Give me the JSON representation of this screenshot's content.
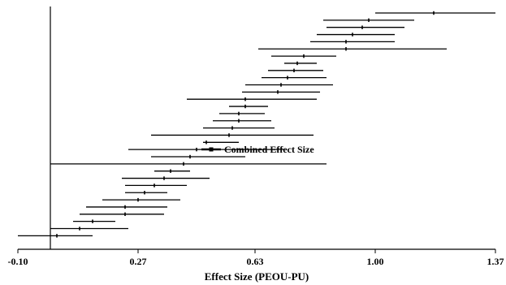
{
  "chart_data": {
    "type": "forest",
    "title": "",
    "xlabel": "Effect Size (PEOU-PU)",
    "ylabel": "",
    "xlim": [
      -0.1,
      1.37
    ],
    "xticks": [
      -0.1,
      0.27,
      0.63,
      1.0,
      1.37
    ],
    "xtick_labels": [
      "-0.10",
      "0.27",
      "0.63",
      "1.00",
      "1.37"
    ],
    "reference_line_x": 0.0,
    "line_color": "#000000",
    "annotation": "Combined Effect Size",
    "combined": {
      "estimate": 0.495,
      "ci_low": 0.475,
      "ci_high": 0.515
    },
    "studies": [
      {
        "estimate": 1.18,
        "ci_low": 1.0,
        "ci_high": 1.37
      },
      {
        "estimate": 0.98,
        "ci_low": 0.84,
        "ci_high": 1.12
      },
      {
        "estimate": 0.96,
        "ci_low": 0.85,
        "ci_high": 1.09
      },
      {
        "estimate": 0.93,
        "ci_low": 0.82,
        "ci_high": 1.06
      },
      {
        "estimate": 0.91,
        "ci_low": 0.8,
        "ci_high": 1.06
      },
      {
        "estimate": 0.91,
        "ci_low": 0.64,
        "ci_high": 1.22
      },
      {
        "estimate": 0.78,
        "ci_low": 0.68,
        "ci_high": 0.88
      },
      {
        "estimate": 0.76,
        "ci_low": 0.72,
        "ci_high": 0.82
      },
      {
        "estimate": 0.75,
        "ci_low": 0.67,
        "ci_high": 0.84
      },
      {
        "estimate": 0.73,
        "ci_low": 0.65,
        "ci_high": 0.85
      },
      {
        "estimate": 0.71,
        "ci_low": 0.6,
        "ci_high": 0.87
      },
      {
        "estimate": 0.7,
        "ci_low": 0.59,
        "ci_high": 0.83
      },
      {
        "estimate": 0.6,
        "ci_low": 0.42,
        "ci_high": 0.82
      },
      {
        "estimate": 0.6,
        "ci_low": 0.55,
        "ci_high": 0.67
      },
      {
        "estimate": 0.58,
        "ci_low": 0.52,
        "ci_high": 0.66
      },
      {
        "estimate": 0.58,
        "ci_low": 0.5,
        "ci_high": 0.68
      },
      {
        "estimate": 0.56,
        "ci_low": 0.47,
        "ci_high": 0.69
      },
      {
        "estimate": 0.55,
        "ci_low": 0.31,
        "ci_high": 0.81
      },
      {
        "estimate": 0.48,
        "ci_low": 0.47,
        "ci_high": 0.58
      },
      {
        "estimate": 0.45,
        "ci_low": 0.24,
        "ci_high": 0.72
      },
      {
        "estimate": 0.43,
        "ci_low": 0.31,
        "ci_high": 0.6
      },
      {
        "estimate": 0.41,
        "ci_low": 0.0,
        "ci_high": 0.85
      },
      {
        "estimate": 0.37,
        "ci_low": 0.32,
        "ci_high": 0.43
      },
      {
        "estimate": 0.35,
        "ci_low": 0.22,
        "ci_high": 0.49
      },
      {
        "estimate": 0.32,
        "ci_low": 0.23,
        "ci_high": 0.42
      },
      {
        "estimate": 0.29,
        "ci_low": 0.23,
        "ci_high": 0.36
      },
      {
        "estimate": 0.27,
        "ci_low": 0.16,
        "ci_high": 0.4
      },
      {
        "estimate": 0.23,
        "ci_low": 0.11,
        "ci_high": 0.36
      },
      {
        "estimate": 0.23,
        "ci_low": 0.09,
        "ci_high": 0.35
      },
      {
        "estimate": 0.13,
        "ci_low": 0.07,
        "ci_high": 0.2
      },
      {
        "estimate": 0.09,
        "ci_low": 0.0,
        "ci_high": 0.24
      },
      {
        "estimate": 0.02,
        "ci_low": -0.1,
        "ci_high": 0.13
      }
    ]
  }
}
